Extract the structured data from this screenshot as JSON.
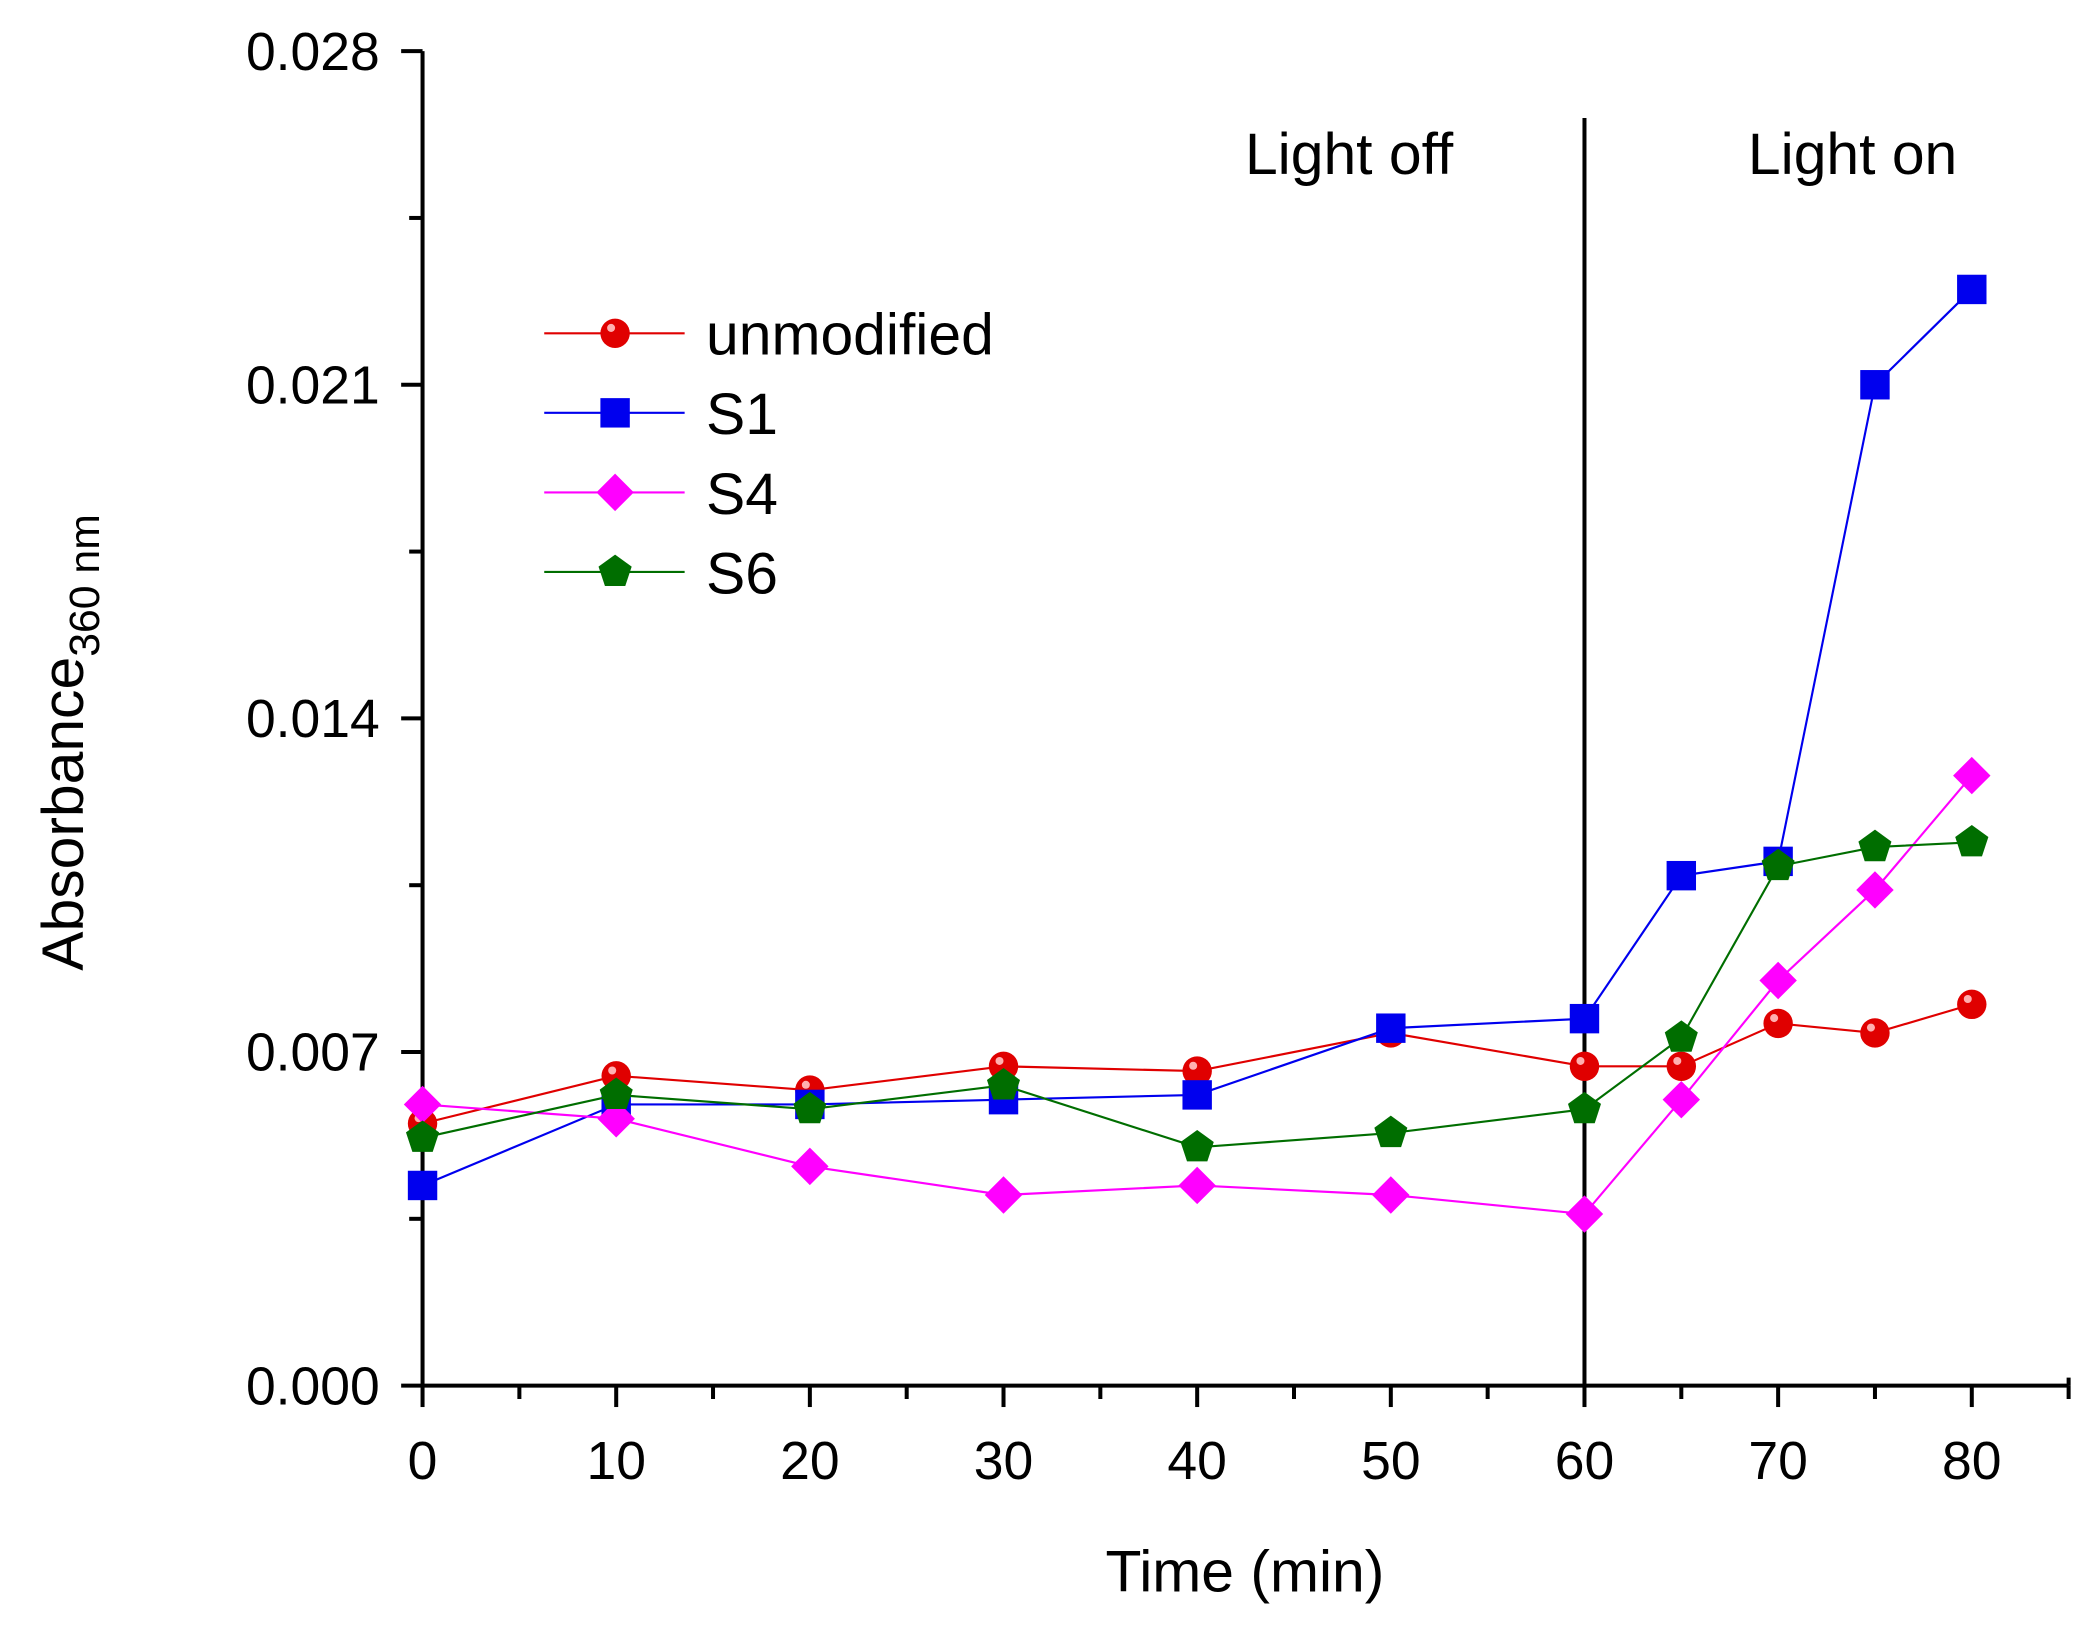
{
  "chart_data": {
    "type": "line",
    "xlabel": "Time (min)",
    "ylabel": "Absorbance",
    "ylabel_subscript": "360 nm",
    "xlim": [
      0,
      85
    ],
    "ylim": [
      0,
      0.028
    ],
    "xticks": [
      "0",
      "10",
      "20",
      "30",
      "40",
      "50",
      "60",
      "70",
      "80"
    ],
    "xtick_values": [
      0,
      10,
      20,
      30,
      40,
      50,
      60,
      70,
      80
    ],
    "yticks": [
      "0.000",
      "0.007",
      "0.014",
      "0.021",
      "0.028"
    ],
    "ytick_values": [
      0,
      0.007,
      0.014,
      0.021,
      0.028
    ],
    "grid": false,
    "legend_position": "upper-left",
    "annotations": [
      {
        "text": "Light off",
        "x": 47.5
      },
      {
        "text": "Light on",
        "x": 73.5
      }
    ],
    "divider_x": 60,
    "x": [
      0,
      10,
      20,
      30,
      40,
      50,
      60,
      65,
      70,
      75,
      80
    ],
    "series": [
      {
        "name": "unmodified",
        "color": "#e00000",
        "marker": "circle",
        "values": [
          0.0055,
          0.0065,
          0.0062,
          0.0067,
          0.0066,
          0.0074,
          0.0067,
          0.0067,
          0.0076,
          0.0074,
          0.008
        ]
      },
      {
        "name": "S1",
        "color": "#0000ee",
        "marker": "square",
        "values": [
          0.0042,
          0.0059,
          0.0059,
          0.006,
          0.0061,
          0.0075,
          0.0077,
          0.0107,
          0.011,
          0.021,
          0.023
        ]
      },
      {
        "name": "S4",
        "color": "#ff00ff",
        "marker": "diamond",
        "values": [
          0.0059,
          0.0056,
          0.0046,
          0.004,
          0.0042,
          0.004,
          0.0036,
          0.006,
          0.0085,
          0.0104,
          0.0128
        ]
      },
      {
        "name": "S6",
        "color": "#006e00",
        "marker": "pentagon",
        "values": [
          0.0052,
          0.0061,
          0.0058,
          0.0063,
          0.005,
          0.0053,
          0.0058,
          0.0073,
          0.0109,
          0.0113,
          0.0114
        ]
      }
    ]
  }
}
